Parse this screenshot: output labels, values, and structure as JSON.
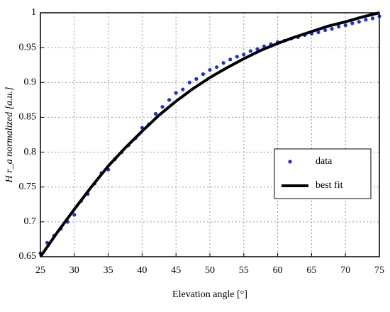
{
  "chart_data": {
    "type": "line",
    "xlabel": "Elevation angle [°]",
    "ylabel": "H r_a normalized [a.u.]",
    "xlim": [
      25,
      75
    ],
    "xticks": [
      25,
      30,
      35,
      40,
      45,
      50,
      55,
      60,
      65,
      70,
      75
    ],
    "ylim": [
      0.65,
      1
    ],
    "yticks": [
      0.65,
      0.7,
      0.75,
      0.8,
      0.85,
      0.9,
      0.95,
      1
    ],
    "grid": true,
    "legend": "right",
    "series": [
      {
        "name": "data",
        "type": "scatter",
        "color": "#1f2fd6",
        "x": [
          25,
          26,
          27,
          28,
          29,
          30,
          31,
          32,
          33,
          34,
          35,
          36,
          37,
          38,
          39,
          40,
          41,
          42,
          43,
          44,
          45,
          46,
          47,
          48,
          49,
          50,
          51,
          52,
          53,
          54,
          55,
          56,
          57,
          58,
          59,
          60,
          61,
          62,
          63,
          64,
          65,
          66,
          67,
          68,
          69,
          70,
          71,
          72,
          73,
          74,
          75
        ],
        "values": [
          0.655,
          0.67,
          0.68,
          0.69,
          0.7,
          0.71,
          0.73,
          0.74,
          0.755,
          0.77,
          0.775,
          0.79,
          0.8,
          0.81,
          0.82,
          0.835,
          0.84,
          0.855,
          0.865,
          0.875,
          0.885,
          0.89,
          0.9,
          0.905,
          0.912,
          0.918,
          0.922,
          0.928,
          0.933,
          0.937,
          0.94,
          0.945,
          0.948,
          0.952,
          0.955,
          0.958,
          0.96,
          0.963,
          0.965,
          0.968,
          0.97,
          0.972,
          0.975,
          0.977,
          0.98,
          0.982,
          0.985,
          0.987,
          0.99,
          0.992,
          0.995
        ]
      },
      {
        "name": "best fit",
        "type": "line",
        "color": "#000000",
        "x": [
          25,
          27.5,
          30,
          32.5,
          35,
          37.5,
          40,
          42.5,
          45,
          47.5,
          50,
          52.5,
          55,
          57.5,
          60,
          62.5,
          65,
          67.5,
          70,
          72.5,
          75
        ],
        "values": [
          0.65,
          0.685,
          0.718,
          0.75,
          0.78,
          0.806,
          0.83,
          0.853,
          0.873,
          0.891,
          0.907,
          0.921,
          0.934,
          0.946,
          0.956,
          0.965,
          0.973,
          0.981,
          0.987,
          0.994,
          1
        ]
      }
    ]
  }
}
